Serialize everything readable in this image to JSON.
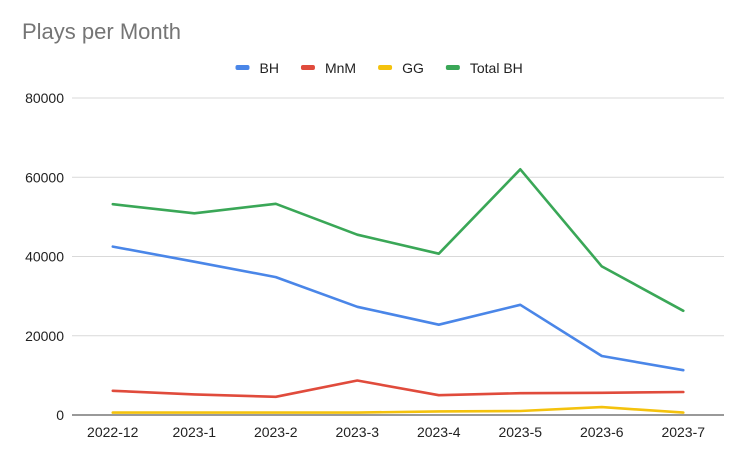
{
  "chart_data": {
    "type": "line",
    "title": "Plays per Month",
    "xlabel": "",
    "ylabel": "",
    "categories": [
      "2022-12",
      "2023-1",
      "2023-2",
      "2023-3",
      "2023-4",
      "2023-5",
      "2023-6",
      "2023-7"
    ],
    "ylim": [
      0,
      80000
    ],
    "yticks": [
      "0",
      "20000",
      "40000",
      "60000",
      "80000"
    ],
    "grid": true,
    "legend_position": "top",
    "series": [
      {
        "name": "BH",
        "color": "#4a86e8",
        "values": [
          42500,
          38700,
          34800,
          27300,
          22800,
          27800,
          14900,
          11300
        ]
      },
      {
        "name": "MnM",
        "color": "#e04b3c",
        "values": [
          6100,
          5200,
          4600,
          8700,
          5000,
          5500,
          5600,
          5800
        ]
      },
      {
        "name": "GG",
        "color": "#f4c20d",
        "values": [
          600,
          600,
          600,
          600,
          900,
          1000,
          2000,
          600
        ]
      },
      {
        "name": "Total BH",
        "color": "#3aa757",
        "values": [
          53200,
          50900,
          53300,
          45500,
          40700,
          62000,
          37500,
          26300
        ]
      }
    ]
  }
}
